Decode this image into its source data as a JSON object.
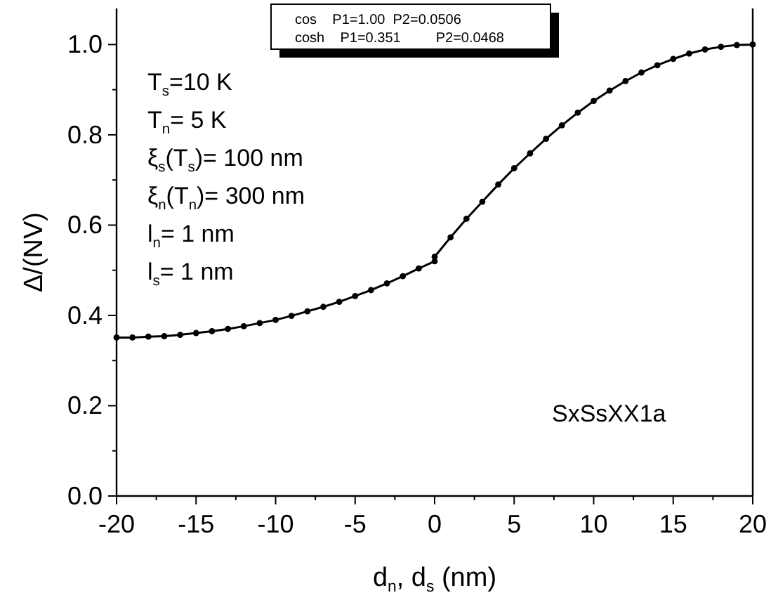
{
  "chart_data": {
    "type": "line",
    "xlabel": "d$_{n}$, d$_{s}$ (nm)",
    "ylabel": "Δ/(NV)",
    "xlim": [
      -20,
      20
    ],
    "ylim": [
      0,
      1.08
    ],
    "xticks": [
      -20,
      {
        "value": -17.5,
        "label": null
      },
      -15,
      {
        "value": -12.5,
        "label": null
      },
      -10,
      {
        "value": -7.5,
        "label": null
      },
      -5,
      {
        "value": -2.5,
        "label": null
      },
      0,
      {
        "value": 2.5,
        "label": null
      },
      5,
      {
        "value": 7.5,
        "label": null
      },
      10,
      {
        "value": 12.5,
        "label": null
      },
      15,
      {
        "value": 17.5,
        "label": null
      },
      20
    ],
    "yticks": [
      {
        "value": 0,
        "label": "0.0"
      },
      {
        "value": 0.1,
        "label": null
      },
      0.2,
      {
        "value": 0.3,
        "label": null
      },
      0.4,
      {
        "value": 0.5,
        "label": null
      },
      0.6,
      {
        "value": 0.7,
        "label": null
      },
      0.8,
      {
        "value": 0.9,
        "label": null
      },
      {
        "value": 1,
        "label": "1.0"
      }
    ],
    "grid": false,
    "marker": "circle",
    "line_style": "solid",
    "series": [
      {
        "color": "#000000",
        "x": [
          -20,
          -19,
          -18,
          -17,
          -16,
          -15,
          -14,
          -13,
          -12,
          -11,
          -10,
          -9,
          -8,
          -7,
          -6,
          -5,
          -4,
          -3,
          -2,
          -1,
          0
        ],
        "values": [
          0.351,
          0.351,
          0.353,
          0.354,
          0.357,
          0.361,
          0.365,
          0.37,
          0.376,
          0.383,
          0.39,
          0.399,
          0.409,
          0.419,
          0.43,
          0.443,
          0.456,
          0.471,
          0.487,
          0.504,
          0.52
        ]
      },
      {
        "color": "#000000",
        "x": [
          0,
          1,
          2,
          3,
          4,
          5,
          6,
          7,
          8,
          9,
          10,
          11,
          12,
          13,
          14,
          15,
          16,
          17,
          18,
          19,
          20
        ],
        "values": [
          0.53,
          0.573,
          0.614,
          0.652,
          0.69,
          0.726,
          0.759,
          0.791,
          0.821,
          0.849,
          0.875,
          0.898,
          0.919,
          0.938,
          0.954,
          0.968,
          0.98,
          0.989,
          0.995,
          0.999,
          1.0
        ]
      }
    ],
    "annotations": [
      "cos    P1=1.00  P2=0.0506",
      "cosh    P1=0.351         P2=0.0468",
      "T$_{s}$=10 K",
      "T$_{n}$= 5 K",
      "ξ$_{s}$(T$_{s}$)= 100 nm",
      "ξ$_{n}$(T$_{n}$)= 300 nm",
      "l$_{n}$= 1 nm",
      "l$_{s}$= 1 nm",
      "SxSsXX1a"
    ]
  }
}
